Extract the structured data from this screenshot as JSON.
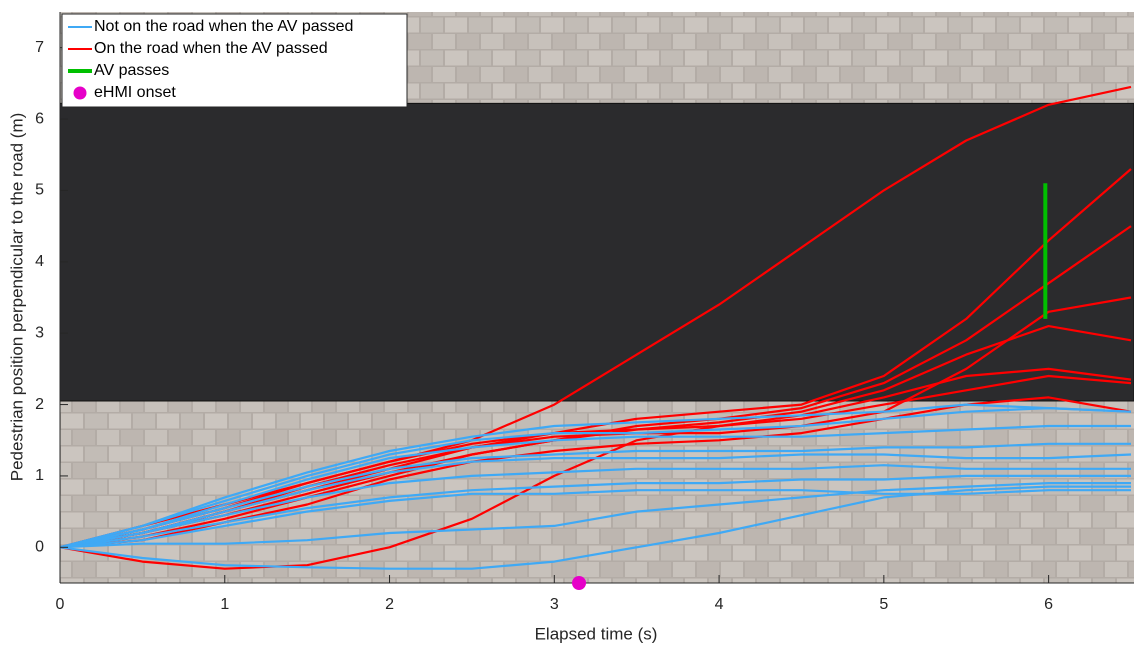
{
  "chart_data": {
    "type": "line",
    "xlabel": "Elapsed time (s)",
    "ylabel": "Pedestrian position perpendicular to the road (m)",
    "xlim": [
      0,
      6.5
    ],
    "ylim": [
      -0.5,
      7.5
    ],
    "xticks": [
      0,
      1,
      2,
      3,
      4,
      5,
      6
    ],
    "yticks": [
      0,
      1,
      2,
      3,
      4,
      5,
      6,
      7
    ],
    "road_band": [
      2.05,
      6.22
    ],
    "legend": "upper left",
    "x": [
      0,
      0.5,
      1,
      1.5,
      2,
      2.5,
      3,
      3.5,
      4,
      4.5,
      5,
      5.5,
      6,
      6.5
    ],
    "series": [
      {
        "name": "Not on the road when the AV passed",
        "color": "#3fa9f5",
        "marker": "line",
        "lines": [
          [
            0,
            -0.15,
            -0.25,
            -0.28,
            -0.3,
            -0.3,
            -0.2,
            0.0,
            0.2,
            0.45,
            0.7,
            0.8,
            0.85,
            0.85
          ],
          [
            0,
            0.3,
            0.65,
            1.0,
            1.3,
            1.5,
            1.6,
            1.6,
            1.65,
            1.7,
            1.8,
            1.9,
            1.95,
            1.9
          ],
          [
            0,
            0.25,
            0.55,
            0.85,
            1.1,
            1.25,
            1.3,
            1.35,
            1.35,
            1.35,
            1.4,
            1.4,
            1.45,
            1.45
          ],
          [
            0,
            0.2,
            0.45,
            0.7,
            0.9,
            1.0,
            1.05,
            1.1,
            1.1,
            1.1,
            1.15,
            1.1,
            1.1,
            1.1
          ],
          [
            0,
            0.05,
            0.05,
            0.1,
            0.2,
            0.25,
            0.3,
            0.5,
            0.6,
            0.7,
            0.8,
            0.85,
            0.9,
            0.9
          ],
          [
            0,
            0.3,
            0.7,
            1.05,
            1.35,
            1.55,
            1.7,
            1.75,
            1.8,
            1.85,
            1.9,
            2.0,
            1.95,
            1.9
          ],
          [
            0,
            0.15,
            0.35,
            0.55,
            0.7,
            0.8,
            0.85,
            0.9,
            0.9,
            0.95,
            0.95,
            1.0,
            1.0,
            1.0
          ],
          [
            0,
            0.2,
            0.5,
            0.8,
            1.05,
            1.2,
            1.25,
            1.25,
            1.25,
            1.3,
            1.3,
            1.25,
            1.25,
            1.3
          ],
          [
            0,
            0.25,
            0.6,
            0.95,
            1.25,
            1.4,
            1.5,
            1.55,
            1.55,
            1.55,
            1.6,
            1.65,
            1.7,
            1.7
          ],
          [
            0,
            0.1,
            0.3,
            0.5,
            0.65,
            0.75,
            0.75,
            0.8,
            0.8,
            0.8,
            0.75,
            0.75,
            0.8,
            0.8
          ]
        ]
      },
      {
        "name": "On the road when the AV passed",
        "color": "#ff0000",
        "marker": "line",
        "lines": [
          [
            0,
            0.3,
            0.6,
            0.9,
            1.2,
            1.5,
            2.0,
            2.7,
            3.4,
            4.2,
            5.0,
            5.7,
            6.2,
            6.45
          ],
          [
            0,
            0.2,
            0.5,
            0.8,
            1.1,
            1.4,
            1.6,
            1.8,
            1.9,
            2.0,
            2.4,
            3.2,
            4.3,
            5.3
          ],
          [
            0,
            0.15,
            0.4,
            0.7,
            1.0,
            1.3,
            1.5,
            1.7,
            1.8,
            1.95,
            2.3,
            2.9,
            3.7,
            4.5
          ],
          [
            0,
            0.2,
            0.45,
            0.75,
            1.05,
            1.3,
            1.5,
            1.65,
            1.75,
            1.9,
            2.2,
            2.7,
            3.1,
            2.9
          ],
          [
            0,
            -0.2,
            -0.3,
            -0.25,
            0.0,
            0.4,
            1.0,
            1.5,
            1.7,
            1.85,
            2.1,
            2.4,
            2.5,
            2.35
          ],
          [
            0,
            0.25,
            0.55,
            0.9,
            1.2,
            1.45,
            1.6,
            1.65,
            1.7,
            1.8,
            2.0,
            2.2,
            2.4,
            2.3
          ],
          [
            0,
            0.2,
            0.5,
            0.85,
            1.15,
            1.4,
            1.55,
            1.6,
            1.6,
            1.7,
            1.9,
            2.5,
            3.3,
            3.5
          ],
          [
            0,
            0.1,
            0.35,
            0.6,
            0.95,
            1.2,
            1.35,
            1.45,
            1.5,
            1.6,
            1.8,
            2.0,
            2.1,
            1.9
          ]
        ]
      },
      {
        "name": "AV passes",
        "color": "#00c000",
        "marker": "segment",
        "x": [
          5.98,
          5.98
        ],
        "values": [
          3.2,
          5.1
        ]
      },
      {
        "name": "eHMI onset",
        "color": "#e600c8",
        "marker": "point",
        "x": [
          3.15
        ],
        "values": [
          -0.5
        ]
      }
    ]
  }
}
